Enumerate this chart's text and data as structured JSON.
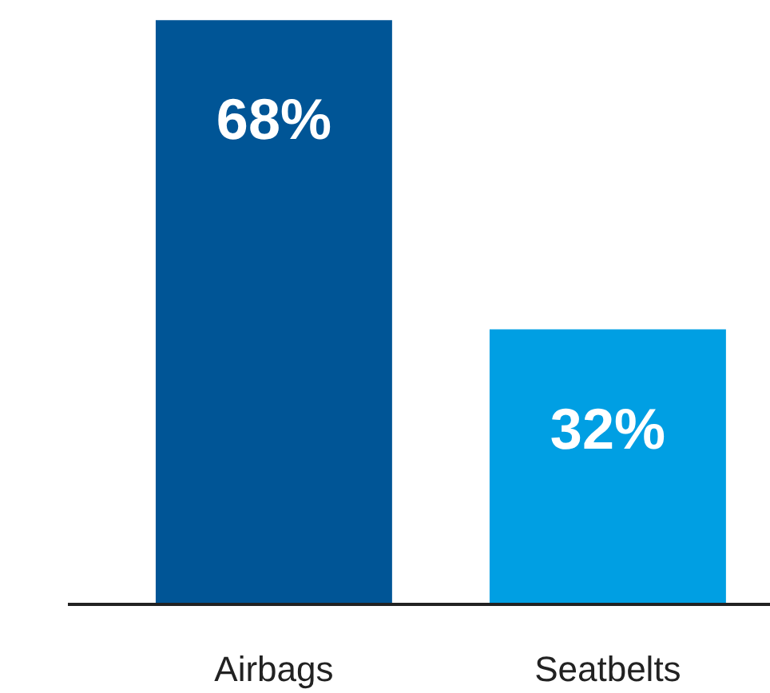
{
  "chart_data": {
    "type": "bar",
    "categories": [
      "Airbags",
      "Seatbelts"
    ],
    "values": [
      68,
      32
    ],
    "colors": [
      "#005596",
      "#009fe3"
    ],
    "value_labels": [
      "68%",
      "32%"
    ],
    "grid": false
  }
}
